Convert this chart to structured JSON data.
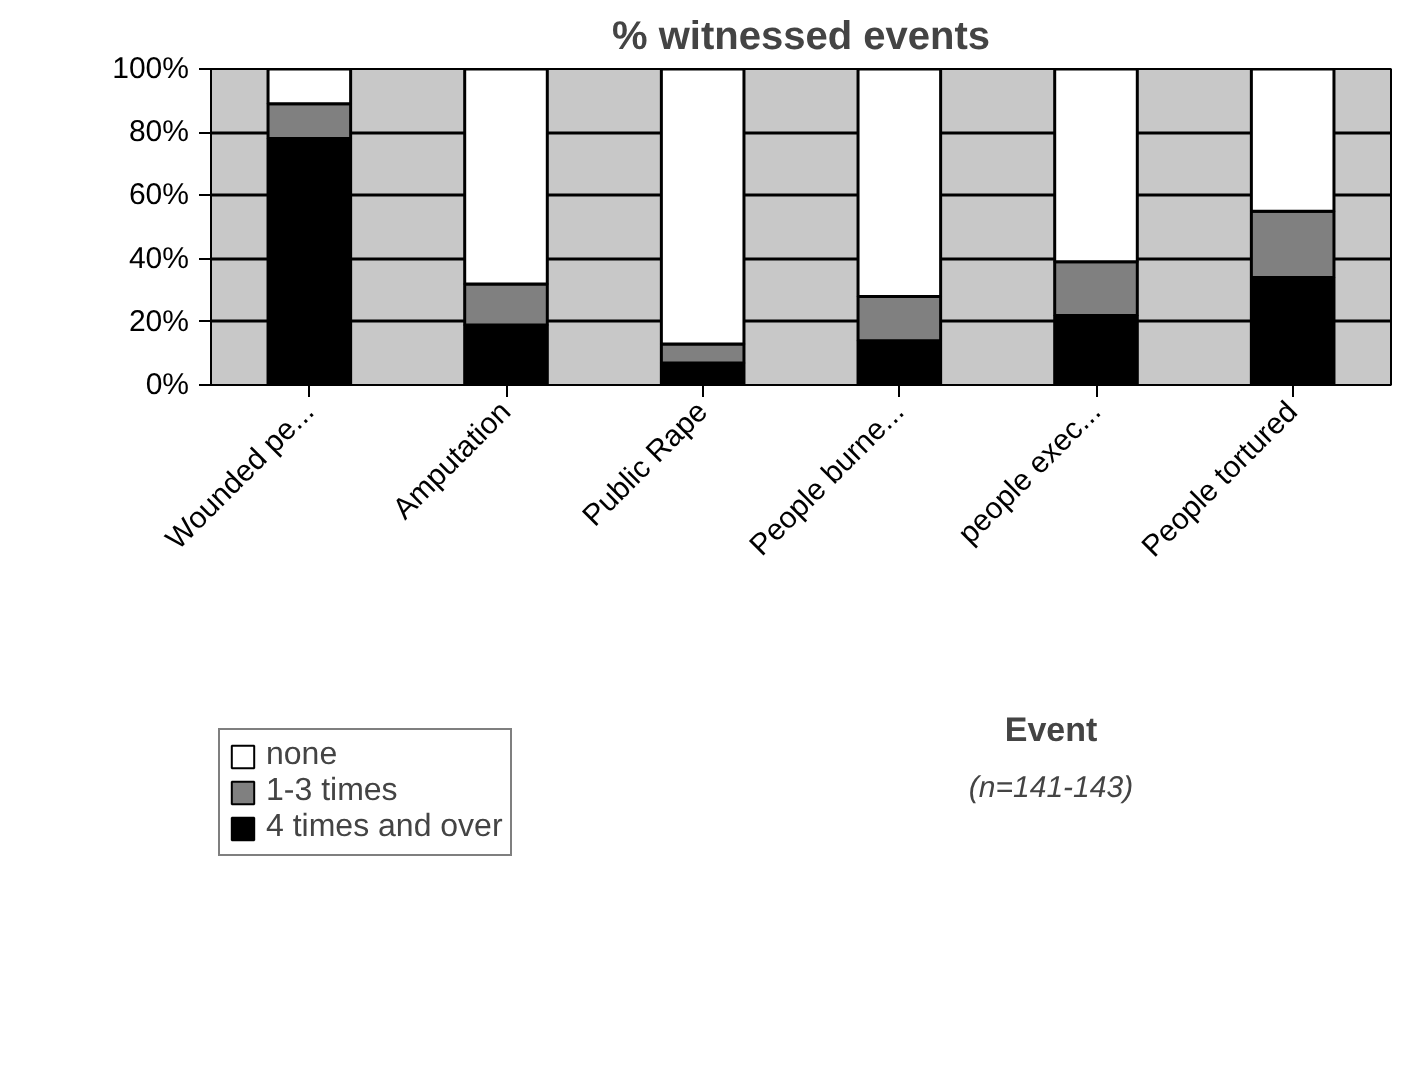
{
  "chart_data": {
    "type": "bar",
    "title": "% witnessed events",
    "xlabel": "Event",
    "annotations": [
      "(n=141-143)"
    ],
    "categories": [
      "Wounded pe...",
      "Amputation",
      "Public Rape",
      "People burne...",
      "people exec...",
      "People tortured"
    ],
    "stacked": true,
    "legend": "bottom left",
    "grid": "y",
    "ylim": [
      0,
      100
    ],
    "yticks": [
      {
        "value": 0,
        "label": "0%"
      },
      {
        "value": 20,
        "label": "20%"
      },
      {
        "value": 40,
        "label": "40%"
      },
      {
        "value": 60,
        "label": "60%"
      },
      {
        "value": 80,
        "label": "80%"
      },
      {
        "value": 100,
        "label": "100%"
      }
    ],
    "series": [
      {
        "name": "4 times and over",
        "color": "#000000",
        "values": [
          78,
          19,
          7,
          14,
          22,
          34
        ]
      },
      {
        "name": "1-3 times",
        "color": "#808080",
        "values": [
          11,
          13,
          6,
          14,
          17,
          21
        ]
      },
      {
        "name": "none",
        "color": "#ffffff",
        "values": [
          11,
          68,
          87,
          72,
          61,
          45
        ]
      }
    ]
  }
}
